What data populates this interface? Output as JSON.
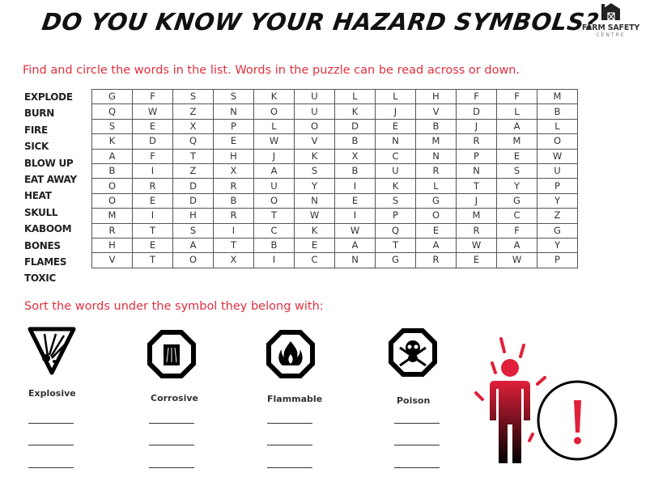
{
  "header": {
    "title": "DO YOU KNOW YOUR HAZARD SYMBOLS?",
    "logo": {
      "name": "FARM SAFETY",
      "sub": "CENTRE"
    }
  },
  "instructions": "Find and circle the words in the list. Words in the puzzle can be read across or down.",
  "word_list": [
    "EXPLODE",
    "BURN",
    "FIRE",
    "SICK",
    "BLOW UP",
    "EAT AWAY",
    "HEAT",
    "SKULL",
    "KABOOM",
    "BONES",
    "FLAMES",
    "TOXIC"
  ],
  "grid": [
    [
      "G",
      "F",
      "S",
      "S",
      "K",
      "U",
      "L",
      "L",
      "H",
      "F",
      "F",
      "M"
    ],
    [
      "Q",
      "W",
      "Z",
      "N",
      "O",
      "U",
      "K",
      "J",
      "V",
      "D",
      "L",
      "B"
    ],
    [
      "S",
      "E",
      "X",
      "P",
      "L",
      "O",
      "D",
      "E",
      "B",
      "J",
      "A",
      "L"
    ],
    [
      "K",
      "D",
      "Q",
      "E",
      "W",
      "V",
      "B",
      "N",
      "M",
      "R",
      "M",
      "O"
    ],
    [
      "A",
      "F",
      "T",
      "H",
      "J",
      "K",
      "X",
      "C",
      "N",
      "P",
      "E",
      "W"
    ],
    [
      "B",
      "I",
      "Z",
      "X",
      "A",
      "S",
      "B",
      "U",
      "R",
      "N",
      "S",
      "U"
    ],
    [
      "O",
      "R",
      "D",
      "R",
      "U",
      "Y",
      "I",
      "K",
      "L",
      "T",
      "Y",
      "P"
    ],
    [
      "O",
      "E",
      "D",
      "B",
      "O",
      "N",
      "E",
      "S",
      "G",
      "J",
      "G",
      "Y"
    ],
    [
      "M",
      "I",
      "H",
      "R",
      "T",
      "W",
      "I",
      "P",
      "O",
      "M",
      "C",
      "Z"
    ],
    [
      "R",
      "T",
      "S",
      "I",
      "C",
      "K",
      "W",
      "Q",
      "E",
      "R",
      "F",
      "G"
    ],
    [
      "H",
      "E",
      "A",
      "T",
      "B",
      "E",
      "A",
      "T",
      "A",
      "W",
      "A",
      "Y"
    ],
    [
      "V",
      "T",
      "O",
      "X",
      "I",
      "C",
      "N",
      "G",
      "R",
      "E",
      "W",
      "P"
    ]
  ],
  "sort_instructions": "Sort the words under the symbol they belong with:",
  "symbols": [
    {
      "label": "Explosive",
      "icon": "explosive-icon"
    },
    {
      "label": "Corrosive",
      "icon": "corrosive-icon"
    },
    {
      "label": "Flammable",
      "icon": "flammable-icon"
    },
    {
      "label": "Poison",
      "icon": "poison-icon"
    }
  ],
  "colors": {
    "accent": "#e0303f",
    "text": "#222222"
  }
}
